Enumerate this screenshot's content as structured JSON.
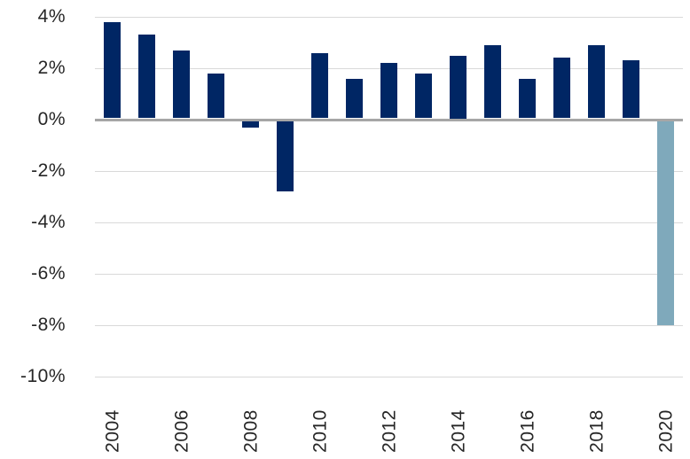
{
  "chart_data": {
    "type": "bar",
    "title": "",
    "xlabel": "",
    "ylabel": "",
    "unit": "%",
    "categories": [
      "2004",
      "2005",
      "2006",
      "2007",
      "2008",
      "2009",
      "2010",
      "2011",
      "2012",
      "2013",
      "2014",
      "2015",
      "2016",
      "2017",
      "2018",
      "2019",
      "2020"
    ],
    "values": [
      3.8,
      3.3,
      2.7,
      1.8,
      -0.3,
      -2.8,
      2.6,
      1.6,
      2.2,
      1.8,
      2.5,
      2.9,
      1.6,
      2.4,
      2.9,
      2.3,
      -8.0
    ],
    "highlight_category": "2020",
    "ylim": [
      -10,
      4
    ],
    "ytick_values": [
      4,
      2,
      0,
      -2,
      -4,
      -6,
      -8,
      -10
    ],
    "ytick_labels": [
      "4%",
      "2%",
      "0%",
      "-2%",
      "-4%",
      "-6%",
      "-8%",
      "-10%"
    ],
    "xtick_labels": [
      "2004",
      "2006",
      "2008",
      "2010",
      "2012",
      "2014",
      "2016",
      "2018",
      "2020"
    ],
    "grid": true,
    "legend": false,
    "colors": {
      "bar_default": "#002664",
      "bar_highlight": "#7FA9BB",
      "zero_axis": "#A6A6A6",
      "gridline": "#D9D9D9",
      "text": "#262626",
      "background": "#FFFFFF"
    }
  }
}
